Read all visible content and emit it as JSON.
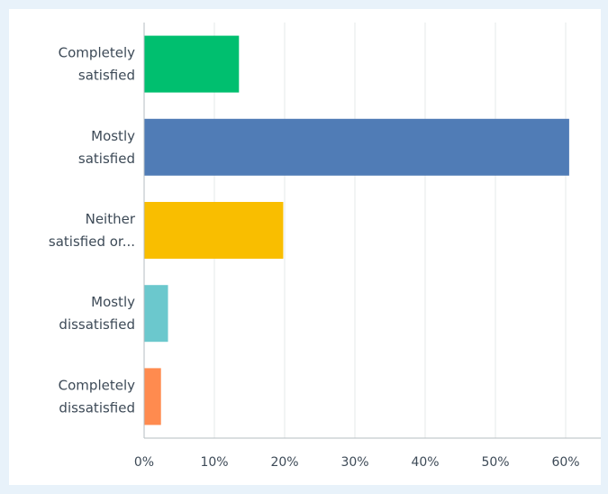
{
  "chart_data": {
    "type": "bar",
    "orientation": "horizontal",
    "categories": [
      [
        "Completely",
        "satisfied"
      ],
      [
        "Mostly",
        "satisfied"
      ],
      [
        "Neither",
        "satisfied or..."
      ],
      [
        "Mostly",
        "dissatisfied"
      ],
      [
        "Completely",
        "dissatisfied"
      ]
    ],
    "values": [
      13.5,
      60.5,
      19.8,
      3.4,
      2.4
    ],
    "colors": [
      "#00bf6f",
      "#507cb6",
      "#f9be00",
      "#6bc8cd",
      "#ff8b4f"
    ],
    "xlim": [
      0,
      65
    ],
    "xticks": [
      0,
      10,
      20,
      30,
      40,
      50,
      60
    ],
    "xtick_labels": [
      "0%",
      "10%",
      "20%",
      "30%",
      "40%",
      "50%",
      "60%"
    ],
    "grid": true,
    "legend": false
  }
}
